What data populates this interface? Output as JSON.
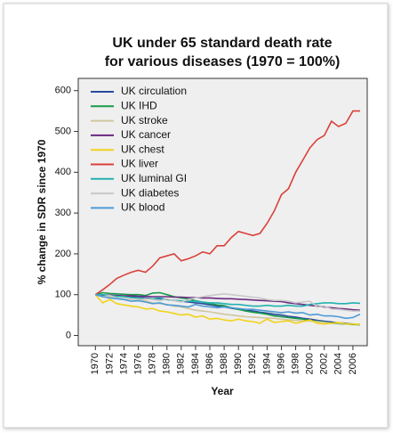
{
  "chart_data": {
    "type": "line",
    "title": [
      "UK under 65 standard death rate",
      "for various diseases (1970 = 100%)"
    ],
    "x_label": "Year",
    "y_label": "% change in SDR since 1970",
    "x": [
      1970,
      1971,
      1972,
      1973,
      1974,
      1975,
      1976,
      1977,
      1978,
      1979,
      1980,
      1981,
      1982,
      1983,
      1984,
      1985,
      1986,
      1987,
      1988,
      1989,
      1990,
      1991,
      1992,
      1993,
      1994,
      1995,
      1996,
      1997,
      1998,
      1999,
      2000,
      2001,
      2002,
      2003,
      2004,
      2005,
      2006,
      2007
    ],
    "xlim": [
      1967.6,
      2008
    ],
    "xticks": [
      1970,
      1972,
      1974,
      1976,
      1978,
      1980,
      1982,
      1984,
      1986,
      1988,
      1990,
      1992,
      1994,
      1996,
      1998,
      2000,
      2002,
      2004,
      2006
    ],
    "ylim": [
      -25,
      630
    ],
    "yticks": [
      0,
      100,
      200,
      300,
      400,
      500,
      600
    ],
    "legend": "upper left",
    "series": [
      {
        "name": "UK circulation",
        "color": "#2b4a9c",
        "values": [
          100,
          99,
          98,
          97,
          96,
          94,
          93,
          92,
          90,
          90,
          88,
          86,
          84,
          82,
          80,
          78,
          75,
          72,
          70,
          67,
          64,
          62,
          60,
          57,
          55,
          52,
          50,
          47,
          45,
          42,
          40,
          37,
          35,
          33,
          31,
          30,
          28,
          27
        ]
      },
      {
        "name": "UK IHD",
        "color": "#1a9a4a",
        "values": [
          100,
          105,
          103,
          102,
          101,
          100,
          100,
          98,
          104,
          105,
          100,
          95,
          92,
          90,
          85,
          82,
          78,
          75,
          73,
          68,
          64,
          60,
          57,
          55,
          52,
          48,
          46,
          44,
          42,
          40,
          37,
          35,
          33,
          30,
          29,
          28,
          27,
          26
        ]
      },
      {
        "name": "UK stroke",
        "color": "#cfc6a0",
        "values": [
          100,
          98,
          95,
          92,
          90,
          88,
          88,
          85,
          80,
          78,
          76,
          72,
          70,
          66,
          62,
          60,
          58,
          55,
          52,
          50,
          48,
          46,
          45,
          44,
          43,
          42,
          40,
          38,
          37,
          36,
          35,
          34,
          32,
          30,
          30,
          29,
          28,
          27
        ]
      },
      {
        "name": "UK cancer",
        "color": "#6a2a80",
        "values": [
          100,
          99,
          99,
          98,
          97,
          97,
          96,
          96,
          95,
          95,
          95,
          94,
          94,
          93,
          93,
          92,
          92,
          91,
          90,
          90,
          89,
          88,
          87,
          86,
          85,
          84,
          83,
          80,
          78,
          76,
          74,
          72,
          70,
          68,
          66,
          65,
          63,
          62
        ]
      },
      {
        "name": "UK chest",
        "color": "#f2d21a",
        "values": [
          100,
          80,
          88,
          78,
          75,
          72,
          70,
          65,
          66,
          60,
          58,
          54,
          50,
          52,
          45,
          48,
          40,
          42,
          38,
          36,
          40,
          36,
          34,
          30,
          40,
          32,
          34,
          36,
          30,
          34,
          38,
          30,
          28,
          30,
          32,
          28,
          28,
          27
        ]
      },
      {
        "name": "UK liver",
        "color": "#d9413a",
        "values": [
          100,
          112,
          125,
          140,
          148,
          155,
          160,
          155,
          170,
          190,
          195,
          200,
          183,
          188,
          195,
          205,
          200,
          220,
          220,
          240,
          255,
          250,
          245,
          250,
          275,
          305,
          345,
          360,
          400,
          430,
          460,
          480,
          490,
          525,
          512,
          520,
          550,
          550
        ]
      },
      {
        "name": "UK luminal GI",
        "color": "#22b2b0",
        "values": [
          100,
          100,
          98,
          96,
          95,
          93,
          92,
          90,
          90,
          92,
          88,
          86,
          85,
          84,
          84,
          82,
          80,
          80,
          78,
          76,
          76,
          74,
          72,
          72,
          74,
          72,
          72,
          74,
          72,
          72,
          76,
          78,
          80,
          80,
          78,
          78,
          80,
          79
        ]
      },
      {
        "name": "UK diabetes",
        "color": "#c8c8c8",
        "values": [
          100,
          95,
          98,
          92,
          90,
          88,
          86,
          90,
          88,
          85,
          90,
          85,
          82,
          88,
          92,
          95,
          98,
          100,
          102,
          100,
          98,
          96,
          94,
          92,
          88,
          86,
          86,
          84,
          80,
          82,
          84,
          70,
          72,
          65,
          64,
          62,
          60,
          60
        ]
      },
      {
        "name": "UK blood",
        "color": "#4d9ad6",
        "values": [
          100,
          95,
          92,
          90,
          88,
          84,
          85,
          82,
          78,
          80,
          75,
          74,
          72,
          70,
          76,
          72,
          70,
          68,
          70,
          68,
          66,
          64,
          64,
          62,
          60,
          58,
          56,
          58,
          55,
          56,
          50,
          52,
          48,
          48,
          46,
          42,
          44,
          52
        ]
      }
    ]
  }
}
